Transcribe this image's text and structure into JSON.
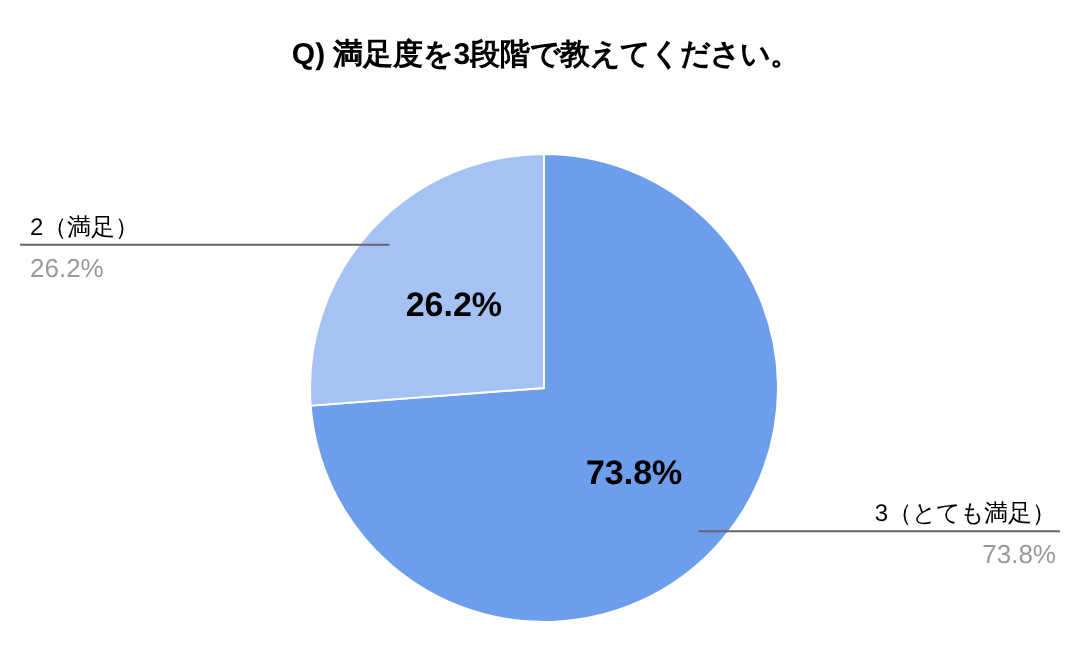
{
  "chart_data": {
    "type": "pie",
    "title": "Q) 満足度を3段階で教えてください。",
    "categories": [
      "3（とても満足）",
      "2（満足）"
    ],
    "values": [
      73.8,
      26.2
    ],
    "colors": [
      "#6d9eeb",
      "#a4c2f4"
    ],
    "value_labels": [
      "73.8%",
      "26.2%"
    ]
  }
}
